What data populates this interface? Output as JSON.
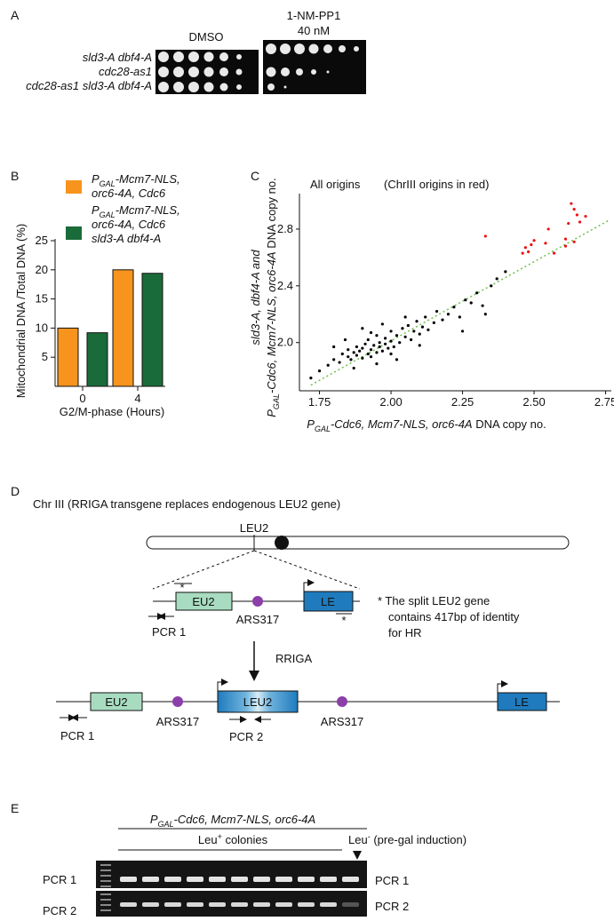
{
  "panel_a": {
    "label": "A",
    "plates": [
      {
        "condition": [
          "DMSO"
        ]
      },
      {
        "condition": [
          "1-NM-PP1",
          "40 nM"
        ]
      }
    ],
    "strains": [
      "sld3-A dbf4-A",
      "cdc28-as1",
      "cdc28-as1 sld3-A dbf4-A"
    ]
  },
  "chart_data": [
    {
      "type": "bar",
      "label": "B",
      "ylabel": "Mitochondrial DNA /Total DNA (%)",
      "xlabel": "G2/M-phase (Hours)",
      "categories": [
        "0",
        "4"
      ],
      "series": [
        {
          "name": [
            [
              {
                "text": "P"
              },
              {
                "text": "GAL",
                "sub": true
              },
              {
                "text": "-Mcm7-NLS,"
              }
            ],
            [
              {
                "text": "orc6-4A, Cdc6"
              }
            ]
          ],
          "color": "#f7941d",
          "values": [
            10,
            20
          ]
        },
        {
          "name": [
            [
              {
                "text": "P"
              },
              {
                "text": "GAL",
                "sub": true
              },
              {
                "text": "-Mcm7-NLS,"
              }
            ],
            [
              {
                "text": "orc6-4A, Cdc6"
              }
            ],
            [
              {
                "text": "sld3-A dbf4-A"
              }
            ]
          ],
          "color": "#1a6b3a",
          "values": [
            9.2,
            19.4
          ]
        }
      ],
      "ylim": [
        0,
        25
      ],
      "yticks": [
        5,
        10,
        15,
        20,
        25
      ]
    },
    {
      "type": "scatter",
      "label": "C",
      "annotations": [
        "All origins",
        "(ChrIII origins in red)"
      ],
      "xlabel": [
        {
          "text": "P",
          "italic": true
        },
        {
          "text": "GAL",
          "sub": true,
          "italic": true
        },
        {
          "text": "-Cdc6, Mcm7-NLS, orc6-4A",
          "italic": true
        },
        {
          "text": " DNA copy no."
        }
      ],
      "ylabel": [
        [
          {
            "text": "sld3-A, dbf4-A and",
            "italic": true
          }
        ],
        [
          {
            "text": "P",
            "italic": true
          },
          {
            "text": "GAL",
            "sub": true,
            "italic": true
          },
          {
            "text": "-Cdc6, Mcm7-NLS, orc6-4A",
            "italic": true
          },
          {
            "text": " DNA copy no."
          }
        ]
      ],
      "xlim": [
        1.68,
        2.77
      ],
      "ylim": [
        1.66,
        3.05
      ],
      "xticks": [
        1.75,
        {
          "value": 2,
          "label": "2.00"
        },
        2.25,
        {
          "value": 2.5,
          "label": "2.50"
        },
        2.75
      ],
      "yticks": [
        {
          "value": 2,
          "label": "2.0"
        },
        2.4,
        2.8
      ],
      "trendline": {
        "color": "#6cc04a",
        "x": [
          1.72,
          2.76
        ],
        "y": [
          1.7,
          2.86
        ]
      },
      "series": [
        {
          "color": "#000000",
          "x": [
            1.72,
            1.75,
            1.78,
            1.8,
            1.82,
            1.83,
            1.85,
            1.85,
            1.86,
            1.87,
            1.88,
            1.88,
            1.89,
            1.9,
            1.9,
            1.91,
            1.92,
            1.92,
            1.93,
            1.93,
            1.94,
            1.95,
            1.95,
            1.96,
            1.96,
            1.97,
            1.98,
            1.98,
            1.99,
            2.0,
            2.0,
            2.01,
            2.02,
            2.03,
            2.04,
            2.05,
            2.06,
            2.07,
            2.08,
            2.09,
            2.1,
            2.11,
            2.12,
            2.13,
            2.15,
            2.16,
            2.18,
            2.2,
            2.22,
            2.24,
            2.26,
            2.28,
            2.3,
            2.32,
            2.35,
            2.37,
            2.4,
            1.8,
            1.84,
            1.9,
            1.95,
            2.0,
            2.05,
            2.1,
            1.87,
            1.93,
            1.97,
            2.02,
            2.25,
            2.33
          ],
          "y": [
            1.75,
            1.8,
            1.84,
            1.88,
            1.86,
            1.92,
            1.9,
            1.95,
            1.88,
            1.93,
            1.91,
            1.97,
            1.94,
            1.89,
            1.96,
            1.99,
            1.92,
            2.02,
            1.95,
            1.9,
            1.98,
            1.93,
            2.05,
            1.97,
            2.0,
            1.94,
            2.03,
            1.99,
            1.96,
            2.01,
            2.08,
            1.97,
            2.05,
            2.0,
            2.1,
            2.04,
            2.12,
            2.02,
            2.08,
            2.15,
            2.06,
            2.11,
            2.18,
            2.09,
            2.14,
            2.22,
            2.16,
            2.2,
            2.25,
            2.18,
            2.3,
            2.28,
            2.35,
            2.26,
            2.4,
            2.45,
            2.5,
            1.97,
            2.02,
            2.1,
            1.85,
            1.92,
            2.18,
            1.98,
            1.82,
            2.07,
            2.13,
            1.88,
            2.08,
            2.2
          ]
        },
        {
          "color": "#ee1111",
          "x": [
            2.33,
            2.46,
            2.47,
            2.48,
            2.49,
            2.5,
            2.55,
            2.54,
            2.57,
            2.61,
            2.62,
            2.63,
            2.64,
            2.65,
            2.66,
            2.68,
            2.61,
            2.64
          ],
          "y": [
            2.75,
            2.63,
            2.67,
            2.64,
            2.69,
            2.72,
            2.8,
            2.7,
            2.63,
            2.73,
            2.84,
            2.98,
            2.94,
            2.9,
            2.85,
            2.89,
            2.68,
            2.71
          ]
        }
      ]
    }
  ],
  "panel_d": {
    "label": "D",
    "title": "Chr III (RRIGA transgene replaces endogenous LEU2 gene)",
    "locus": "LEU2",
    "construct": {
      "eu2": "EU2",
      "ars": "ARS317",
      "le": "LE",
      "star1": "*",
      "star2": "*",
      "pcr": "PCR 1"
    },
    "arrow_label": "RRIGA",
    "note": [
      "* The split LEU2 gene",
      "contains 417bp of identity",
      "for HR"
    ],
    "product": {
      "eu2": "EU2",
      "ars1": "ARS317",
      "leu2": "LEU2",
      "ars2": "ARS317",
      "le": "LE",
      "pcr1": "PCR 1",
      "pcr2": "PCR 2"
    }
  },
  "panel_e": {
    "label": "E",
    "title": [
      {
        "text": "P"
      },
      {
        "text": "GAL",
        "sub": true
      },
      {
        "text": "-Cdc6, Mcm7-NLS, orc6-4A"
      }
    ],
    "colonies": [
      {
        "text": "Leu"
      },
      {
        "text": "+",
        "sup": true
      },
      {
        "text": " colonies"
      }
    ],
    "control": [
      {
        "text": "Leu"
      },
      {
        "text": "-",
        "sup": true
      },
      {
        "text": " (pre-gal induction)"
      }
    ],
    "rows_left": [
      "PCR 1",
      "PCR 2"
    ],
    "rows_right": [
      "PCR 1",
      "PCR 2"
    ]
  }
}
